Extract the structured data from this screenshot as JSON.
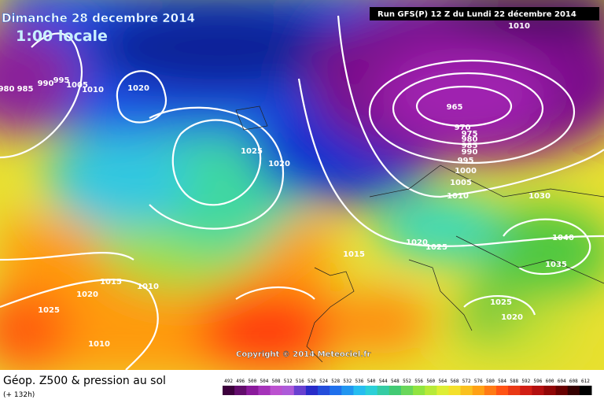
{
  "header": {
    "date": "Dimanche 28 decembre 2014",
    "time": "1:00 locale",
    "run": "Run GFS(P) 12 Z du Lundi 22 décembre 2014"
  },
  "map": {
    "isobar_labels": [
      "980",
      "985",
      "990",
      "995",
      "1005",
      "1010",
      "1020",
      "1025",
      "1020",
      "965",
      "970",
      "975",
      "980",
      "985",
      "990",
      "995",
      "1000",
      "1005",
      "1010",
      "1010",
      "1030",
      "1040",
      "1035",
      "1025",
      "1020",
      "1015",
      "1015",
      "1010",
      "1020",
      "1025",
      "1010",
      "1025",
      "1020"
    ],
    "copyright": "Copyright © 2014 Meteociel.fr"
  },
  "legend": {
    "title": "Géop. Z500 & pression au sol",
    "lead": "(+ 132h)",
    "scale": [
      492,
      496,
      500,
      504,
      508,
      512,
      516,
      520,
      524,
      528,
      532,
      536,
      540,
      544,
      548,
      552,
      556,
      560,
      564,
      568,
      572,
      576,
      580,
      584,
      588,
      592,
      596,
      600,
      604,
      608,
      612
    ]
  }
}
